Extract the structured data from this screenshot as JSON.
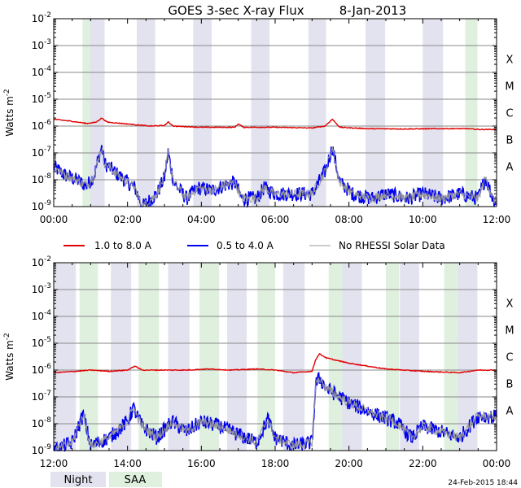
{
  "title": "GOES 3-sec X-ray Flux",
  "date": "8-Jan-2013",
  "footer_timestamp": "24-Feb-2015 18:44",
  "colors": {
    "long_channel": "#e00000",
    "short_channel": "#0000f0",
    "no_rhessi": "#999999",
    "night_band": "#e3e3f0",
    "saa_band": "#dff0df",
    "grid": "#888888"
  },
  "legend": {
    "long": "1.0 to 8.0 A",
    "short": "0.5 to 4.0 A",
    "no_rhessi": "No RHESSI Solar Data",
    "night": "Night",
    "saa": "SAA"
  },
  "chart_data": [
    {
      "type": "line",
      "id": "top",
      "ylabel": "Watts m^-2",
      "y_scale": "log",
      "ylim_exponents": [
        -9,
        -2
      ],
      "ytick_exponents": [
        -9,
        -8,
        -7,
        -6,
        -5,
        -4,
        -3,
        -2
      ],
      "flare_classes": [
        {
          "label": "A",
          "exp": -8
        },
        {
          "label": "B",
          "exp": -7
        },
        {
          "label": "C",
          "exp": -6
        },
        {
          "label": "M",
          "exp": -5
        },
        {
          "label": "X",
          "exp": -4
        }
      ],
      "x_range_hours": [
        0,
        12
      ],
      "xtick_labels": [
        "00:00",
        "02:00",
        "04:00",
        "06:00",
        "08:00",
        "10:00",
        "12:00"
      ],
      "night_intervals": [
        [
          0.98,
          1.38
        ],
        [
          2.25,
          2.75
        ],
        [
          3.78,
          4.28
        ],
        [
          5.35,
          5.85
        ],
        [
          6.9,
          7.38
        ],
        [
          8.45,
          8.98
        ],
        [
          10.0,
          10.55
        ]
      ],
      "saa_intervals": [
        [
          0.78,
          0.98
        ],
        [
          11.15,
          11.48
        ]
      ],
      "long_points": [
        [
          0,
          1.8e-06
        ],
        [
          0.5,
          1.5e-06
        ],
        [
          0.9,
          1.25e-06
        ],
        [
          1.15,
          1.4e-06
        ],
        [
          1.3,
          2e-06
        ],
        [
          1.45,
          1.4e-06
        ],
        [
          2.0,
          1.2e-06
        ],
        [
          2.6,
          1e-06
        ],
        [
          3.0,
          1.05e-06
        ],
        [
          3.1,
          1.4e-06
        ],
        [
          3.25,
          1e-06
        ],
        [
          4.0,
          9e-07
        ],
        [
          4.9,
          9e-07
        ],
        [
          5.0,
          1.2e-06
        ],
        [
          5.15,
          9e-07
        ],
        [
          6.0,
          9e-07
        ],
        [
          7.0,
          8.5e-07
        ],
        [
          7.35,
          1e-06
        ],
        [
          7.55,
          1.8e-06
        ],
        [
          7.75,
          9e-07
        ],
        [
          8.5,
          8e-07
        ],
        [
          9.5,
          7.8e-07
        ],
        [
          10.5,
          8e-07
        ],
        [
          11.2,
          8e-07
        ],
        [
          11.5,
          7.5e-07
        ],
        [
          12,
          7.5e-07
        ]
      ],
      "short_points": [
        [
          0,
          3e-08
        ],
        [
          0.3,
          1.5e-08
        ],
        [
          0.6,
          1e-08
        ],
        [
          0.9,
          6e-09
        ],
        [
          1.1,
          1.5e-08
        ],
        [
          1.25,
          1e-07
        ],
        [
          1.3,
          1.6e-07
        ],
        [
          1.38,
          4e-08
        ],
        [
          1.5,
          3e-08
        ],
        [
          1.75,
          1.5e-08
        ],
        [
          2.0,
          8e-09
        ],
        [
          2.2,
          5e-09
        ],
        [
          2.4,
          1e-09
        ],
        [
          2.8,
          3e-09
        ],
        [
          3.0,
          1.2e-08
        ],
        [
          3.1,
          1.1e-07
        ],
        [
          3.25,
          8e-09
        ],
        [
          3.6,
          2e-09
        ],
        [
          3.9,
          5e-09
        ],
        [
          4.3,
          4e-09
        ],
        [
          4.6,
          6e-09
        ],
        [
          4.9,
          8e-09
        ],
        [
          5.1,
          2e-09
        ],
        [
          5.5,
          2e-09
        ],
        [
          5.7,
          5e-09
        ],
        [
          6.0,
          3e-09
        ],
        [
          6.5,
          3e-09
        ],
        [
          7.0,
          3e-09
        ],
        [
          7.35,
          2e-08
        ],
        [
          7.55,
          1.6e-07
        ],
        [
          7.75,
          8e-09
        ],
        [
          8.1,
          3e-09
        ],
        [
          8.6,
          2e-09
        ],
        [
          9.0,
          3e-09
        ],
        [
          9.6,
          2e-09
        ],
        [
          10.0,
          3e-09
        ],
        [
          10.5,
          2e-09
        ],
        [
          11.0,
          3e-09
        ],
        [
          11.5,
          2e-09
        ],
        [
          11.7,
          1.2e-08
        ],
        [
          11.9,
          2e-09
        ],
        [
          12,
          1.5e-09
        ]
      ]
    },
    {
      "type": "line",
      "id": "bottom",
      "ylabel": "Watts m^-2",
      "y_scale": "log",
      "ylim_exponents": [
        -9,
        -2
      ],
      "ytick_exponents": [
        -9,
        -8,
        -7,
        -6,
        -5,
        -4,
        -3,
        -2
      ],
      "flare_classes": [
        {
          "label": "A",
          "exp": -8
        },
        {
          "label": "B",
          "exp": -7
        },
        {
          "label": "C",
          "exp": -6
        },
        {
          "label": "M",
          "exp": -5
        },
        {
          "label": "X",
          "exp": -4
        }
      ],
      "x_range_hours": [
        12,
        24
      ],
      "xtick_labels": [
        "12:00",
        "14:00",
        "16:00",
        "18:00",
        "20:00",
        "22:00",
        "00:00"
      ],
      "night_intervals": [
        [
          12.0,
          12.6
        ],
        [
          13.55,
          14.1
        ],
        [
          15.1,
          15.68
        ],
        [
          16.7,
          17.23
        ],
        [
          18.22,
          18.8
        ],
        [
          19.82,
          20.35
        ],
        [
          21.38,
          21.9
        ],
        [
          22.95,
          23.48
        ]
      ],
      "saa_intervals": [
        [
          12.7,
          13.2
        ],
        [
          14.3,
          14.85
        ],
        [
          15.95,
          16.48
        ],
        [
          17.52,
          18.0
        ],
        [
          19.45,
          19.82
        ],
        [
          21.0,
          21.36
        ],
        [
          22.58,
          22.95
        ]
      ],
      "long_points": [
        [
          12,
          8e-07
        ],
        [
          12.6,
          9e-07
        ],
        [
          13.0,
          1e-06
        ],
        [
          13.5,
          9e-07
        ],
        [
          14.0,
          1e-06
        ],
        [
          14.2,
          1.4e-06
        ],
        [
          14.4,
          1e-06
        ],
        [
          15.0,
          1e-06
        ],
        [
          15.6,
          1e-06
        ],
        [
          16.2,
          1.1e-06
        ],
        [
          16.8,
          1e-06
        ],
        [
          17.5,
          1.1e-06
        ],
        [
          18.0,
          1e-06
        ],
        [
          18.5,
          8e-07
        ],
        [
          19.0,
          9e-07
        ],
        [
          19.1,
          2.5e-06
        ],
        [
          19.2,
          4e-06
        ],
        [
          19.4,
          2.8e-06
        ],
        [
          20.0,
          1.8e-06
        ],
        [
          21.0,
          1.1e-06
        ],
        [
          22.0,
          9e-07
        ],
        [
          23.0,
          8e-07
        ],
        [
          23.5,
          1e-06
        ],
        [
          24,
          1e-06
        ]
      ],
      "short_points": [
        [
          12,
          1e-09
        ],
        [
          12.5,
          2e-09
        ],
        [
          12.8,
          2.2e-08
        ],
        [
          13.0,
          1.5e-09
        ],
        [
          13.5,
          3e-09
        ],
        [
          14.0,
          1.2e-08
        ],
        [
          14.15,
          4e-08
        ],
        [
          14.4,
          8e-09
        ],
        [
          14.8,
          3e-09
        ],
        [
          15.2,
          1.2e-08
        ],
        [
          15.6,
          5e-09
        ],
        [
          16.0,
          1.2e-08
        ],
        [
          16.5,
          8e-09
        ],
        [
          17.0,
          4e-09
        ],
        [
          17.5,
          2e-09
        ],
        [
          17.8,
          1.5e-08
        ],
        [
          18.0,
          3e-09
        ],
        [
          18.5,
          1.5e-09
        ],
        [
          19.0,
          2e-09
        ],
        [
          19.1,
          3e-07
        ],
        [
          19.2,
          5e-07
        ],
        [
          19.4,
          2e-07
        ],
        [
          20.0,
          6e-08
        ],
        [
          20.7,
          2.3e-08
        ],
        [
          21.3,
          1.1e-08
        ],
        [
          21.7,
          3e-09
        ],
        [
          22.0,
          8e-09
        ],
        [
          22.5,
          5e-09
        ],
        [
          23.0,
          3e-09
        ],
        [
          23.5,
          2e-08
        ],
        [
          24,
          1.8e-08
        ]
      ]
    }
  ]
}
